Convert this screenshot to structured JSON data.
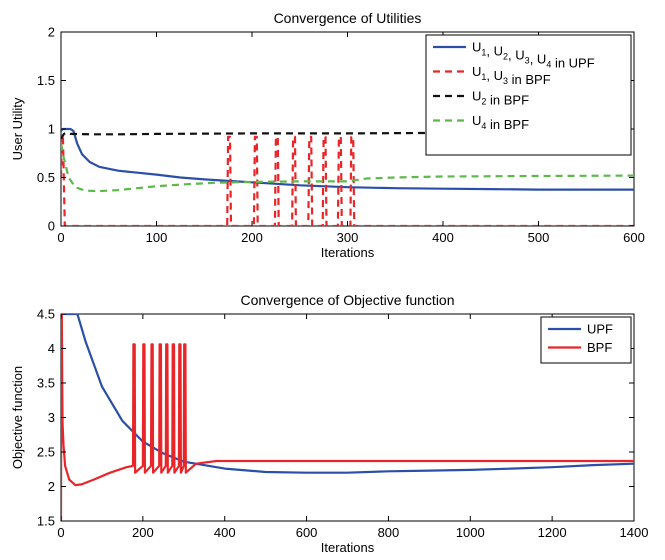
{
  "chart_data": [
    {
      "type": "line",
      "title": "Convergence of Utilities",
      "xlabel": "Iterations",
      "ylabel": "User Utility",
      "xlim": [
        0,
        600
      ],
      "ylim": [
        0,
        2
      ],
      "xticks": [
        "0",
        "100",
        "200",
        "300",
        "400",
        "500",
        "600"
      ],
      "yticks": [
        "0",
        "0.5",
        "1",
        "1.5",
        "2"
      ],
      "grid": false,
      "legend_position": "top-right",
      "series": [
        {
          "name": "U1, U2, U3, U4 in UPF",
          "legend_parts": [
            {
              "t": "U"
            },
            {
              "t": "1",
              "sub": true
            },
            {
              "t": ", U"
            },
            {
              "t": "2",
              "sub": true
            },
            {
              "t": ", U"
            },
            {
              "t": "3",
              "sub": true
            },
            {
              "t": ", U"
            },
            {
              "t": "4",
              "sub": true
            },
            {
              "t": " in UPF"
            }
          ],
          "color": "#2b4fa8",
          "dash": "solid",
          "x": [
            0,
            2,
            10,
            13,
            17,
            22,
            30,
            40,
            50,
            60,
            75,
            100,
            125,
            150,
            200,
            250,
            300,
            350,
            400,
            450,
            500,
            550,
            600
          ],
          "y": [
            0.98,
            1.0,
            1.0,
            0.98,
            0.85,
            0.74,
            0.66,
            0.61,
            0.59,
            0.57,
            0.555,
            0.53,
            0.5,
            0.48,
            0.45,
            0.42,
            0.4,
            0.39,
            0.385,
            0.38,
            0.375,
            0.375,
            0.375
          ]
        },
        {
          "name": "U1, U3 in BPF",
          "legend_parts": [
            {
              "t": "U"
            },
            {
              "t": "1",
              "sub": true
            },
            {
              "t": ", U"
            },
            {
              "t": "3",
              "sub": true
            },
            {
              "t": " in BPF"
            }
          ],
          "color": "#e8262a",
          "dash": "dashed",
          "x": [
            0,
            1,
            2,
            4,
            5,
            174,
            175,
            177,
            178,
            202,
            203,
            205,
            206,
            224,
            225,
            227,
            228,
            242,
            243,
            245,
            246,
            259,
            260,
            262,
            263,
            274,
            275,
            277,
            278,
            290,
            291,
            293,
            294,
            303,
            304,
            306,
            307,
            600
          ],
          "y": [
            0.5,
            0.95,
            0.95,
            0.0,
            0.0,
            0.0,
            0.92,
            0.92,
            0.0,
            0.0,
            0.92,
            0.92,
            0.0,
            0.0,
            0.92,
            0.92,
            0.0,
            0.0,
            0.92,
            0.92,
            0.0,
            0.0,
            0.92,
            0.92,
            0.0,
            0.0,
            0.92,
            0.92,
            0.0,
            0.0,
            0.92,
            0.92,
            0.0,
            0.0,
            0.92,
            0.92,
            0.0,
            0.0
          ]
        },
        {
          "name": "U2 in BPF",
          "legend_parts": [
            {
              "t": "U"
            },
            {
              "t": "2",
              "sub": true
            },
            {
              "t": " in BPF"
            }
          ],
          "color": "#111111",
          "dash": "dashed",
          "x": [
            0,
            3,
            6,
            10,
            30,
            60,
            100,
            200,
            300,
            400,
            500,
            600
          ],
          "y": [
            0.9,
            0.95,
            0.96,
            0.95,
            0.945,
            0.945,
            0.95,
            0.955,
            0.955,
            0.96,
            0.965,
            0.965
          ]
        },
        {
          "name": "U4 in BPF",
          "legend_parts": [
            {
              "t": "U"
            },
            {
              "t": "4",
              "sub": true
            },
            {
              "t": " in BPF"
            }
          ],
          "color": "#5fb84a",
          "dash": "dashed",
          "x": [
            0,
            3,
            8,
            15,
            25,
            40,
            60,
            80,
            100,
            130,
            160,
            200,
            250,
            300,
            320,
            350,
            400,
            500,
            600
          ],
          "y": [
            0.85,
            0.7,
            0.5,
            0.4,
            0.365,
            0.36,
            0.37,
            0.39,
            0.41,
            0.43,
            0.445,
            0.455,
            0.46,
            0.46,
            0.49,
            0.5,
            0.51,
            0.515,
            0.52
          ]
        }
      ]
    },
    {
      "type": "line",
      "title": "Convergence of Objective function",
      "xlabel": "Iterations",
      "ylabel": "Objective function",
      "xlim": [
        0,
        1400
      ],
      "ylim": [
        1.5,
        4.5
      ],
      "xticks": [
        "0",
        "200",
        "400",
        "600",
        "800",
        "1000",
        "1200",
        "1400"
      ],
      "yticks": [
        "1.5",
        "2",
        "2.5",
        "3",
        "3.5",
        "4",
        "4.5"
      ],
      "grid": false,
      "legend_position": "top-right",
      "series": [
        {
          "name": "UPF",
          "legend_parts": [
            {
              "t": "UPF"
            }
          ],
          "color": "#2b4fa8",
          "dash": "solid",
          "x": [
            0,
            20,
            40,
            60,
            100,
            150,
            200,
            250,
            300,
            400,
            500,
            600,
            700,
            800,
            900,
            1000,
            1100,
            1200,
            1300,
            1400
          ],
          "y": [
            4.5,
            4.5,
            4.5,
            4.1,
            3.45,
            2.95,
            2.65,
            2.48,
            2.36,
            2.26,
            2.21,
            2.2,
            2.2,
            2.22,
            2.23,
            2.24,
            2.26,
            2.28,
            2.31,
            2.33
          ]
        },
        {
          "name": "BPF",
          "legend_parts": [
            {
              "t": "BPF"
            }
          ],
          "color": "#e8262a",
          "dash": "solid",
          "x": [
            0,
            1,
            2,
            3,
            4,
            6,
            10,
            20,
            35,
            50,
            80,
            120,
            160,
            176,
            177,
            180,
            181,
            200,
            201,
            204,
            205,
            220,
            221,
            224,
            225,
            240,
            241,
            244,
            245,
            256,
            257,
            260,
            261,
            272,
            273,
            276,
            277,
            288,
            289,
            292,
            293,
            300,
            301,
            304,
            305,
            330,
            380,
            500,
            700,
            900,
            1100,
            1300,
            1400
          ],
          "y": [
            1.5,
            4.5,
            4.5,
            3.5,
            2.9,
            2.6,
            2.3,
            2.1,
            2.02,
            2.03,
            2.1,
            2.2,
            2.28,
            2.3,
            4.06,
            4.06,
            2.2,
            2.3,
            4.06,
            4.06,
            2.2,
            2.3,
            4.06,
            4.06,
            2.2,
            2.3,
            4.06,
            4.06,
            2.2,
            2.3,
            4.06,
            4.06,
            2.2,
            2.3,
            4.06,
            4.06,
            2.2,
            2.3,
            4.06,
            4.06,
            2.2,
            2.3,
            4.06,
            4.06,
            2.2,
            2.33,
            2.37,
            2.37,
            2.37,
            2.37,
            2.37,
            2.37,
            2.37
          ]
        }
      ]
    }
  ]
}
